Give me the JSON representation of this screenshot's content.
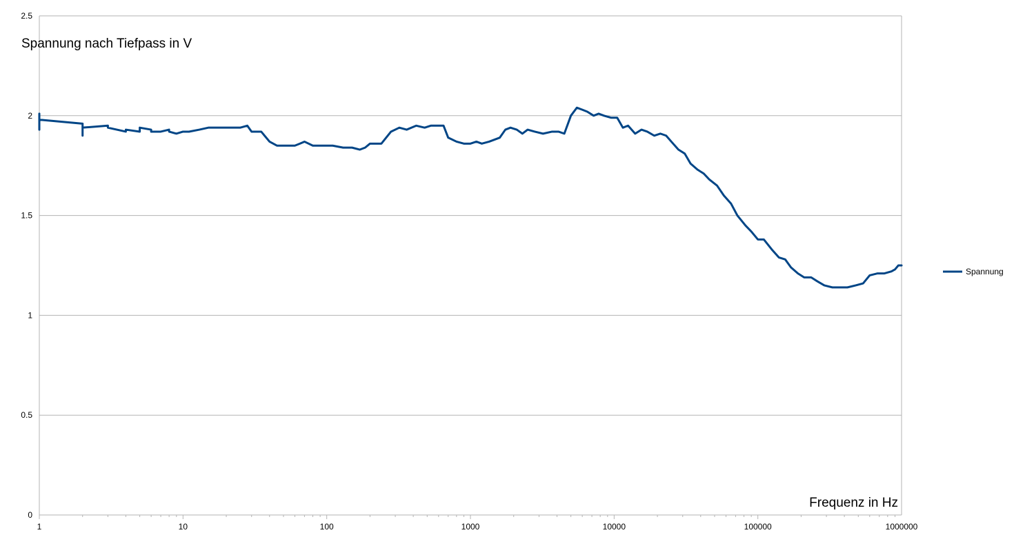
{
  "chart_data": {
    "type": "line",
    "title": "",
    "ylabel": "Spannung nach Tiefpass in V",
    "xlabel": "Frequenz in Hz",
    "x_scale": "log",
    "xlim": [
      1,
      1000000
    ],
    "ylim": [
      0,
      2.5
    ],
    "grid": true,
    "legend_position": "right",
    "x_ticks": [
      "1",
      "10",
      "100",
      "1000",
      "10000",
      "100000",
      "1000000"
    ],
    "y_ticks": [
      "0",
      "0.5",
      "1",
      "1.5",
      "2",
      "2.5"
    ],
    "series": [
      {
        "name": "Spannung",
        "color": "#004586",
        "points": [
          [
            1,
            1.93
          ],
          [
            1,
            2.01
          ],
          [
            1,
            1.98
          ],
          [
            2,
            1.96
          ],
          [
            2,
            1.9
          ],
          [
            2,
            1.94
          ],
          [
            3,
            1.95
          ],
          [
            3,
            1.94
          ],
          [
            4,
            1.92
          ],
          [
            4,
            1.93
          ],
          [
            5,
            1.92
          ],
          [
            5,
            1.94
          ],
          [
            6,
            1.93
          ],
          [
            6,
            1.92
          ],
          [
            7,
            1.92
          ],
          [
            8,
            1.93
          ],
          [
            8,
            1.92
          ],
          [
            9,
            1.91
          ],
          [
            10,
            1.92
          ],
          [
            11,
            1.92
          ],
          [
            13,
            1.93
          ],
          [
            15,
            1.94
          ],
          [
            18,
            1.94
          ],
          [
            20,
            1.94
          ],
          [
            23,
            1.94
          ],
          [
            25,
            1.94
          ],
          [
            28,
            1.95
          ],
          [
            30,
            1.92
          ],
          [
            35,
            1.92
          ],
          [
            40,
            1.87
          ],
          [
            45,
            1.85
          ],
          [
            50,
            1.85
          ],
          [
            55,
            1.85
          ],
          [
            60,
            1.85
          ],
          [
            65,
            1.86
          ],
          [
            70,
            1.87
          ],
          [
            80,
            1.85
          ],
          [
            90,
            1.85
          ],
          [
            100,
            1.85
          ],
          [
            110,
            1.85
          ],
          [
            130,
            1.84
          ],
          [
            150,
            1.84
          ],
          [
            170,
            1.83
          ],
          [
            185,
            1.84
          ],
          [
            200,
            1.86
          ],
          [
            220,
            1.86
          ],
          [
            240,
            1.86
          ],
          [
            280,
            1.92
          ],
          [
            320,
            1.94
          ],
          [
            360,
            1.93
          ],
          [
            420,
            1.95
          ],
          [
            480,
            1.94
          ],
          [
            530,
            1.95
          ],
          [
            600,
            1.95
          ],
          [
            650,
            1.95
          ],
          [
            700,
            1.89
          ],
          [
            800,
            1.87
          ],
          [
            900,
            1.86
          ],
          [
            1000,
            1.86
          ],
          [
            1100,
            1.87
          ],
          [
            1200,
            1.86
          ],
          [
            1350,
            1.87
          ],
          [
            1600,
            1.89
          ],
          [
            1750,
            1.93
          ],
          [
            1900,
            1.94
          ],
          [
            2100,
            1.93
          ],
          [
            2300,
            1.91
          ],
          [
            2500,
            1.93
          ],
          [
            2800,
            1.92
          ],
          [
            3200,
            1.91
          ],
          [
            3700,
            1.92
          ],
          [
            4100,
            1.92
          ],
          [
            4500,
            1.91
          ],
          [
            5000,
            2.0
          ],
          [
            5500,
            2.04
          ],
          [
            6000,
            2.03
          ],
          [
            6500,
            2.02
          ],
          [
            7200,
            2.0
          ],
          [
            7800,
            2.01
          ],
          [
            8500,
            2.0
          ],
          [
            9500,
            1.99
          ],
          [
            10500,
            1.99
          ],
          [
            11500,
            1.94
          ],
          [
            12500,
            1.95
          ],
          [
            14000,
            1.91
          ],
          [
            15500,
            1.93
          ],
          [
            17000,
            1.92
          ],
          [
            19000,
            1.9
          ],
          [
            21000,
            1.91
          ],
          [
            23000,
            1.9
          ],
          [
            25000,
            1.87
          ],
          [
            28000,
            1.83
          ],
          [
            31000,
            1.81
          ],
          [
            34000,
            1.76
          ],
          [
            38000,
            1.73
          ],
          [
            42000,
            1.71
          ],
          [
            46000,
            1.68
          ],
          [
            52000,
            1.65
          ],
          [
            58000,
            1.6
          ],
          [
            65000,
            1.56
          ],
          [
            72000,
            1.5
          ],
          [
            82000,
            1.45
          ],
          [
            90000,
            1.42
          ],
          [
            100000,
            1.38
          ],
          [
            110000,
            1.38
          ],
          [
            125000,
            1.33
          ],
          [
            140000,
            1.29
          ],
          [
            155000,
            1.28
          ],
          [
            170000,
            1.24
          ],
          [
            190000,
            1.21
          ],
          [
            210000,
            1.19
          ],
          [
            235000,
            1.19
          ],
          [
            260000,
            1.17
          ],
          [
            290000,
            1.15
          ],
          [
            330000,
            1.14
          ],
          [
            370000,
            1.14
          ],
          [
            420000,
            1.14
          ],
          [
            480000,
            1.15
          ],
          [
            540000,
            1.16
          ],
          [
            600000,
            1.2
          ],
          [
            680000,
            1.21
          ],
          [
            760000,
            1.21
          ],
          [
            850000,
            1.22
          ],
          [
            900000,
            1.23
          ],
          [
            950000,
            1.25
          ],
          [
            1000000,
            1.25
          ]
        ]
      }
    ]
  }
}
